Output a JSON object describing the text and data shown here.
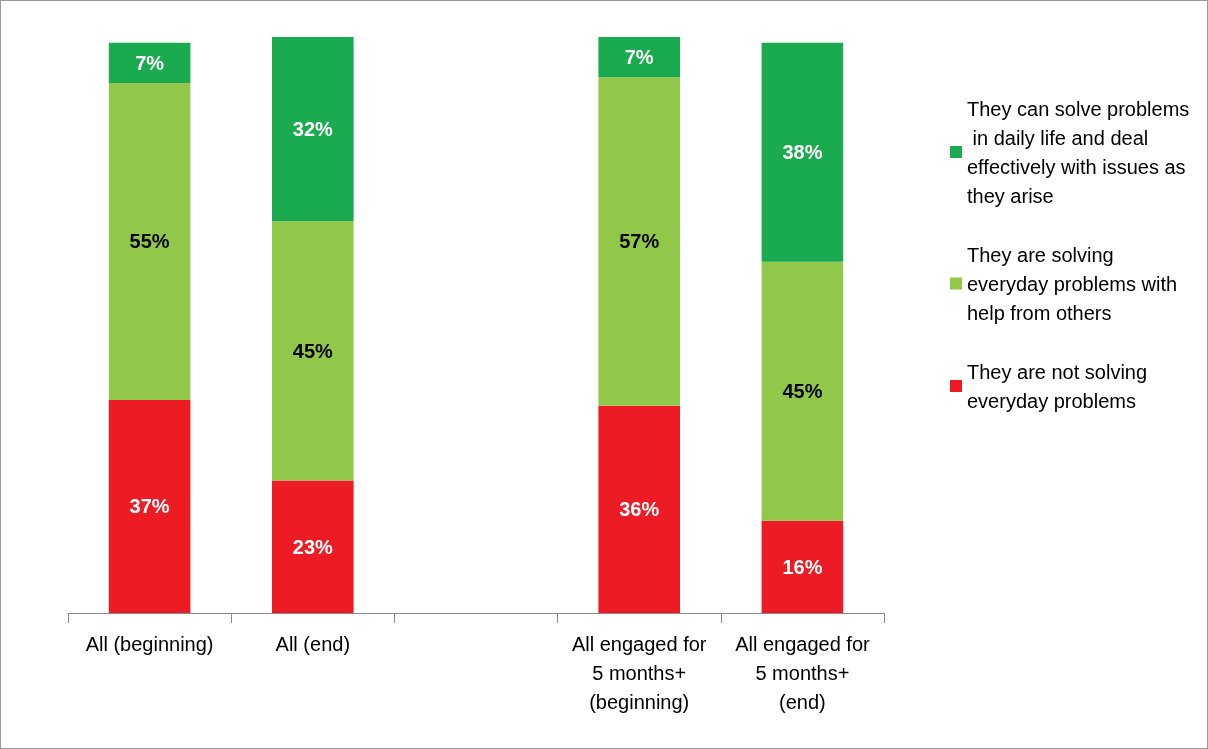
{
  "chart_data": {
    "type": "bar",
    "stacked": true,
    "legend": "right",
    "categories": [
      "All (beginning)",
      "All (end)",
      null,
      "All engaged for 5 months+ (beginning)",
      "All engaged for 5 months+ (end)"
    ],
    "series": [
      {
        "name": "They are not solving everyday problems",
        "color": "#ed1c24",
        "values": [
          37,
          23,
          null,
          36,
          16
        ],
        "value_labels": [
          "37%",
          "23%",
          null,
          "36%",
          "16%"
        ]
      },
      {
        "name": "They are solving everyday problems with help from others",
        "color": "#92c84a",
        "values": [
          55,
          45,
          null,
          57,
          45
        ],
        "value_labels": [
          "55%",
          "45%",
          null,
          "57%",
          "45%"
        ]
      },
      {
        "name": "They can solve problems in daily life and deal effectively with issues as they arise",
        "color": "#1aaa4f",
        "values": [
          7,
          32,
          null,
          7,
          38
        ],
        "value_labels": [
          "7%",
          "32%",
          null,
          "7%",
          "38%"
        ]
      }
    ]
  }
}
